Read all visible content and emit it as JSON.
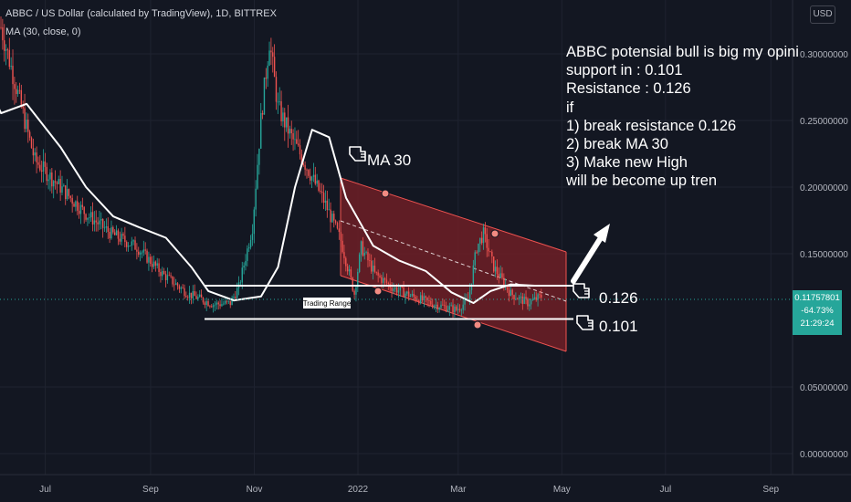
{
  "header": {
    "symbol_line": "ABBC / US Dollar (calculated by TradingView), 1D, BITTREX",
    "indicator_line": "MA (30, close, 0)"
  },
  "currency_button": "USD",
  "price_badge": {
    "price": "0.11757801",
    "change": "-64.73%",
    "countdown": "21:29:24"
  },
  "annotation_note": [
    "ABBC potensial bull is big my opini",
    "support in : 0.101",
    "Resistance : 0.126",
    "if",
    "1) break resistance 0.126",
    "2) break MA 30",
    "3) Make new High",
    "will be become up tren"
  ],
  "drawings": {
    "ma_label": "MA 30",
    "resistance_label": "0.126",
    "support_label": "0.101",
    "range_label": "Trading Range"
  },
  "colors": {
    "background": "#131722",
    "up_candle": "#26a69a",
    "down_candle": "#ef5350",
    "ma_line": "#ffffff",
    "channel_fill": "#6e1f26",
    "channel_border": "#ef5350",
    "pivot_marker": "#f28b82"
  },
  "chart_data": {
    "type": "candlestick",
    "timeframe": "1D",
    "x_axis_labels": [
      "Jul",
      "Sep",
      "Nov",
      "2022",
      "Mar",
      "May",
      "Jul",
      "Sep"
    ],
    "y_axis_labels": [
      "0.30000000",
      "0.25000000",
      "0.20000000",
      "0.15000000",
      "0.05000000",
      "0.00000000"
    ],
    "ylim": [
      -0.005,
      0.335
    ],
    "last_price": 0.11757801,
    "moving_average": {
      "name": "MA (30, close, 0)",
      "points": [
        [
          "2021-05-15",
          0.31
        ],
        [
          "2021-06-05",
          0.2555
        ],
        [
          "2021-06-20",
          0.2625
        ],
        [
          "2021-07-10",
          0.23
        ],
        [
          "2021-07-25",
          0.2
        ],
        [
          "2021-08-10",
          0.178
        ],
        [
          "2021-08-25",
          0.17
        ],
        [
          "2021-09-10",
          0.162
        ],
        [
          "2021-09-25",
          0.14
        ],
        [
          "2021-10-05",
          0.122
        ],
        [
          "2021-10-20",
          0.115
        ],
        [
          "2021-11-05",
          0.118
        ],
        [
          "2021-11-15",
          0.14
        ],
        [
          "2021-11-25",
          0.2
        ],
        [
          "2021-12-05",
          0.243
        ],
        [
          "2021-12-15",
          0.2375
        ],
        [
          "2021-12-25",
          0.192
        ],
        [
          "2022-01-10",
          0.156
        ],
        [
          "2022-01-25",
          0.145
        ],
        [
          "2022-02-10",
          0.137
        ],
        [
          "2022-02-25",
          0.121
        ],
        [
          "2022-03-10",
          0.113
        ],
        [
          "2022-03-20",
          0.122
        ],
        [
          "2022-04-01",
          0.127
        ],
        [
          "2022-04-15",
          0.126
        ]
      ]
    },
    "support": 0.101,
    "resistance": 0.126
  }
}
